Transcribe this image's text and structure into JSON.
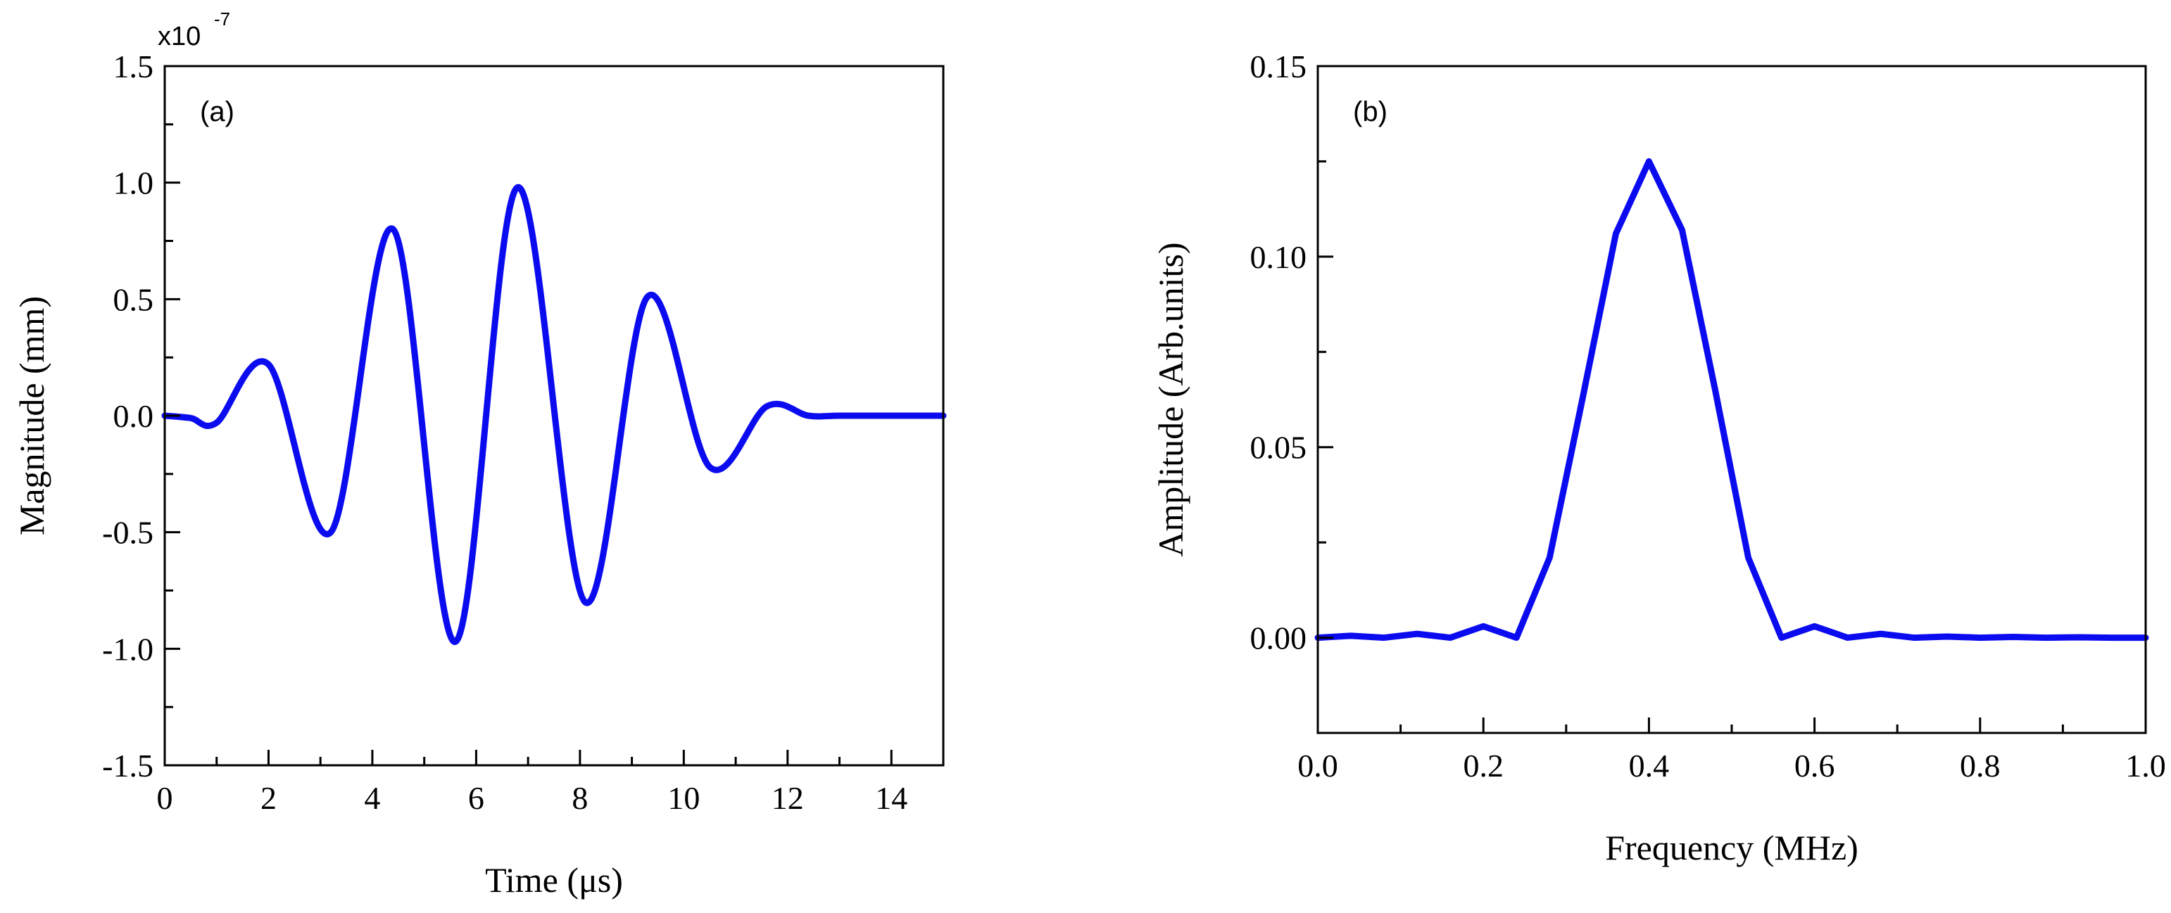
{
  "chart_data": [
    {
      "id": "a",
      "type": "line",
      "panel_label": "(a)",
      "title": "",
      "xlabel": "Time (μs)",
      "ylabel": "Magnitude (mm)",
      "y_multiplier": "x10",
      "y_multiplier_exp": "-7",
      "xlim": [
        0,
        15
      ],
      "ylim": [
        -1.5,
        1.5
      ],
      "xticks": [
        0,
        2,
        4,
        6,
        8,
        10,
        12,
        14
      ],
      "xtick_labels": [
        "0",
        "2",
        "4",
        "6",
        "8",
        "10",
        "12",
        "14"
      ],
      "yticks": [
        -1.5,
        -1.0,
        -0.5,
        0.0,
        0.5,
        1.0,
        1.5
      ],
      "ytick_labels": [
        "-1.5",
        "-1.0",
        "-0.5",
        "0.0",
        "0.5",
        "1.0",
        "1.5"
      ],
      "grid": false,
      "legend": "none",
      "series": [
        {
          "color": "#0b0bf0",
          "x": [
            0,
            0.5,
            1.0,
            2.0,
            3.2,
            4.4,
            5.6,
            6.8,
            8.1,
            9.3,
            10.5,
            11.6,
            12.4,
            13,
            14,
            15
          ],
          "y": [
            0.0,
            -0.01,
            -0.03,
            0.22,
            -0.5,
            0.8,
            -0.97,
            0.98,
            -0.8,
            0.51,
            -0.22,
            0.04,
            0.0,
            0.0,
            0.0,
            0.0
          ]
        }
      ]
    },
    {
      "id": "b",
      "type": "line",
      "panel_label": "(b)",
      "title": "",
      "xlabel": "Frequency (MHz)",
      "ylabel": "Amplitude (Arb.units)",
      "xlim": [
        0,
        1.0
      ],
      "ylim": [
        -0.025,
        0.15
      ],
      "xticks": [
        0.0,
        0.2,
        0.4,
        0.6,
        0.8,
        1.0
      ],
      "xtick_labels": [
        "0.0",
        "0.2",
        "0.4",
        "0.6",
        "0.8",
        "1.0"
      ],
      "yticks": [
        0.0,
        0.05,
        0.1,
        0.15
      ],
      "ytick_labels": [
        "0.00",
        "0.05",
        "0.10",
        "0.15"
      ],
      "grid": false,
      "legend": "none",
      "series": [
        {
          "color": "#0b0bf0",
          "x": [
            0.0,
            0.04,
            0.08,
            0.12,
            0.16,
            0.2,
            0.24,
            0.28,
            0.32,
            0.36,
            0.4,
            0.44,
            0.48,
            0.52,
            0.56,
            0.6,
            0.64,
            0.68,
            0.72,
            0.76,
            0.8,
            0.84,
            0.88,
            0.92,
            0.96,
            1.0
          ],
          "y": [
            0.0,
            0.0005,
            0.0,
            0.001,
            0.0,
            0.003,
            0.0,
            0.021,
            0.063,
            0.106,
            0.125,
            0.107,
            0.065,
            0.021,
            0.0,
            0.003,
            0.0,
            0.001,
            0.0,
            0.0003,
            0.0,
            0.0002,
            0.0,
            0.0001,
            0.0,
            0.0
          ]
        }
      ]
    }
  ]
}
